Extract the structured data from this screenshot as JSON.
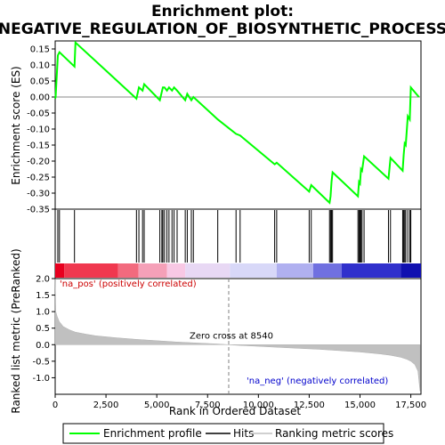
{
  "chart_data": [
    {
      "type": "line",
      "panel": "enrichment-profile",
      "title": "Enrichment plot:\nNEGATIVE_REGULATION_OF_BIOSYNTHETIC_PROCESS",
      "ylabel": "Enrichment score (ES)",
      "xlim": [
        0,
        18000
      ],
      "ylim": [
        -0.35,
        0.175
      ],
      "yticks": [
        -0.35,
        -0.3,
        -0.25,
        -0.2,
        -0.15,
        -0.1,
        -0.05,
        0.0,
        0.05,
        0.1,
        0.15
      ],
      "ytick_labels": [
        "-0.35",
        "-0.30",
        "-0.25",
        "-0.20",
        "-0.15",
        "-0.10",
        "-0.05",
        "0.00",
        "0.05",
        "0.10",
        "0.15"
      ],
      "series": [
        {
          "name": "Enrichment profile",
          "color": "#00ff00",
          "x": [
            0,
            20,
            130,
            210,
            950,
            1000,
            4000,
            4120,
            4300,
            4380,
            5150,
            5300,
            5380,
            5500,
            5600,
            5750,
            5850,
            6000,
            6400,
            6500,
            6700,
            6800,
            8000,
            8900,
            9100,
            10800,
            10900,
            12500,
            12600,
            13500,
            13550,
            13600,
            13650,
            14900,
            14950,
            15000,
            15050,
            15100,
            15200,
            16400,
            16500,
            17100,
            17150,
            17200,
            17250,
            17350,
            17450,
            17500,
            17900
          ],
          "y": [
            -0.005,
            0.0,
            0.13,
            0.14,
            0.095,
            0.17,
            -0.005,
            0.03,
            0.02,
            0.04,
            -0.01,
            0.03,
            0.03,
            0.02,
            0.03,
            0.02,
            0.03,
            0.02,
            -0.01,
            0.01,
            -0.01,
            0.0,
            -0.07,
            -0.115,
            -0.12,
            -0.21,
            -0.205,
            -0.295,
            -0.275,
            -0.33,
            -0.31,
            -0.265,
            -0.235,
            -0.31,
            -0.265,
            -0.27,
            -0.225,
            -0.23,
            -0.185,
            -0.255,
            -0.19,
            -0.23,
            -0.18,
            -0.145,
            -0.15,
            -0.06,
            -0.07,
            0.03,
            0.0
          ]
        }
      ],
      "hits": [
        130,
        210,
        950,
        4000,
        4120,
        4300,
        4380,
        5150,
        5250,
        5300,
        5380,
        5500,
        5600,
        5750,
        5850,
        6000,
        6400,
        6500,
        6700,
        6800,
        8000,
        8900,
        9100,
        10800,
        10900,
        12500,
        12600,
        13500,
        13550,
        13600,
        13650,
        14900,
        14950,
        15000,
        15050,
        15100,
        15200,
        16400,
        16500,
        17100,
        17150,
        17200,
        17250,
        17350,
        17450,
        17500
      ],
      "hits_legend": "Hits"
    },
    {
      "type": "heatmap",
      "panel": "rank-color-bar",
      "xlim": [
        0,
        18000
      ],
      "colors": [
        "#e8001f",
        "#f0384f",
        "#f26a7e",
        "#f5a0b8",
        "#f8c8e4",
        "#e8d8f4",
        "#d8d8f8",
        "#b0b0f0",
        "#7070e0",
        "#3030cc",
        "#1010b0"
      ],
      "breaks": [
        0,
        450,
        3100,
        4100,
        5500,
        6400,
        8600,
        10900,
        12700,
        14100,
        17000,
        18000
      ]
    },
    {
      "type": "area",
      "panel": "ranked-list-metric",
      "xlabel": "Rank in Ordered Dataset",
      "ylabel": "Ranked list metric (PreRanked)",
      "xlim": [
        0,
        18000
      ],
      "ylim": [
        -1.5,
        2.0
      ],
      "xticks": [
        0,
        2500,
        5000,
        7500,
        10000,
        12500,
        15000,
        17500
      ],
      "xtick_labels": [
        "0",
        "2,500",
        "5,000",
        "7,500",
        "10,000",
        "12,500",
        "15,000",
        "17,500"
      ],
      "yticks": [
        -1.0,
        -0.5,
        0.0,
        0.5,
        1.0,
        1.5,
        2.0
      ],
      "ytick_labels": [
        "-1.0",
        "-0.5",
        "0.0",
        "0.5",
        "1.0",
        "1.5",
        "2.0"
      ],
      "series": [
        {
          "name": "Ranking metric scores",
          "color": "#c0c0c0",
          "x": [
            0,
            30,
            100,
            200,
            400,
            700,
            1000,
            1500,
            2000,
            3000,
            4000,
            5000,
            6000,
            7000,
            8000,
            8540,
            9000,
            10000,
            11000,
            12000,
            13000,
            14000,
            15000,
            16000,
            16500,
            17000,
            17300,
            17500,
            17700,
            17850,
            17950
          ],
          "y": [
            2.0,
            1.0,
            0.85,
            0.7,
            0.55,
            0.45,
            0.38,
            0.32,
            0.27,
            0.21,
            0.16,
            0.12,
            0.08,
            0.05,
            0.02,
            0.0,
            -0.02,
            -0.05,
            -0.08,
            -0.11,
            -0.14,
            -0.18,
            -0.22,
            -0.28,
            -0.32,
            -0.38,
            -0.44,
            -0.5,
            -0.6,
            -0.8,
            -1.4
          ]
        }
      ],
      "zero_cross": 8540,
      "annotations": {
        "pos_label": "'na_pos' (positively correlated)",
        "neg_label": "'na_neg' (negatively correlated)",
        "zero_label": "Zero cross at 8540"
      }
    }
  ],
  "legend": {
    "items": [
      {
        "label": "Enrichment profile",
        "color": "#00ff00",
        "kind": "line"
      },
      {
        "label": "Hits",
        "color": "#000000",
        "kind": "line"
      },
      {
        "label": "Ranking metric scores",
        "color": "#c0c0c0",
        "kind": "line"
      }
    ]
  },
  "colors": {
    "profile": "#00ff00",
    "hits": "#000000",
    "metric": "#c0c0c0",
    "pos_text": "#cc0000",
    "neg_text": "#0000cc",
    "zero_line": "#808080"
  }
}
